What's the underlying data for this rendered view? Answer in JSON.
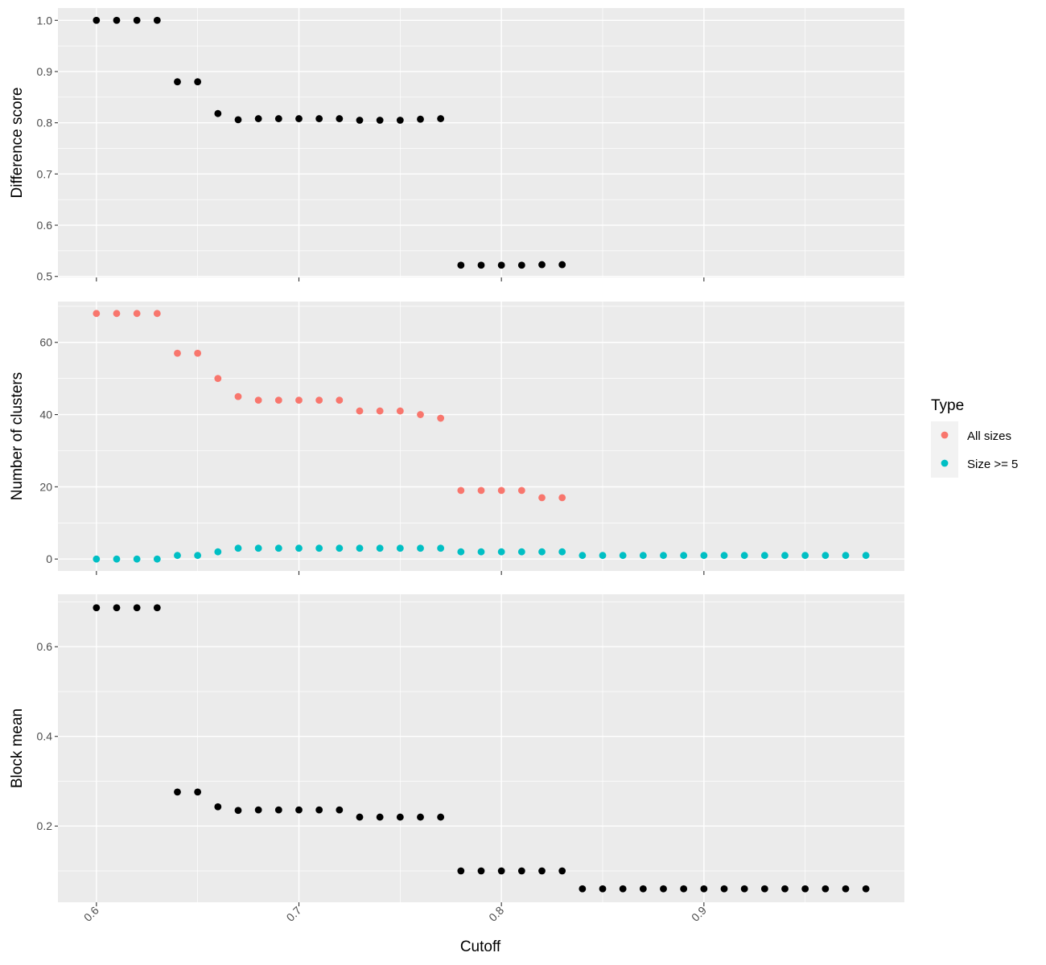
{
  "chart_data": [
    {
      "type": "scatter",
      "ylabel": "Difference score",
      "xlabel": "",
      "xlim": [
        0.581,
        0.999
      ],
      "ylim": [
        0.498,
        1.024
      ],
      "yticks": [
        0.5,
        0.6,
        0.7,
        0.8,
        0.9,
        1.0
      ],
      "ytick_labels": [
        "0.5",
        "0.6",
        "0.7",
        "0.8",
        "0.9",
        "1.0"
      ],
      "grid": true,
      "series": [
        {
          "color": "#000000",
          "x": [
            0.6,
            0.61,
            0.62,
            0.63,
            0.64,
            0.65,
            0.66,
            0.67,
            0.68,
            0.69,
            0.7,
            0.71,
            0.72,
            0.73,
            0.74,
            0.75,
            0.76,
            0.77,
            0.78,
            0.79,
            0.8,
            0.81,
            0.82,
            0.83
          ],
          "y": [
            1.0,
            1.0,
            1.0,
            1.0,
            0.88,
            0.88,
            0.818,
            0.806,
            0.808,
            0.808,
            0.808,
            0.808,
            0.808,
            0.805,
            0.805,
            0.805,
            0.807,
            0.808,
            0.522,
            0.522,
            0.522,
            0.522,
            0.523,
            0.523
          ]
        }
      ]
    },
    {
      "type": "scatter",
      "ylabel": "Number of clusters",
      "xlabel": "",
      "xlim": [
        0.581,
        0.999
      ],
      "ylim": [
        -3.3,
        71.3
      ],
      "yticks": [
        0,
        20,
        40,
        60
      ],
      "ytick_labels": [
        "0",
        "20",
        "40",
        "60"
      ],
      "grid": true,
      "legend": {
        "title": "Type",
        "position": "right"
      },
      "series": [
        {
          "name": "All sizes",
          "color": "#F8766D",
          "x": [
            0.6,
            0.61,
            0.62,
            0.63,
            0.64,
            0.65,
            0.66,
            0.67,
            0.68,
            0.69,
            0.7,
            0.71,
            0.72,
            0.73,
            0.74,
            0.75,
            0.76,
            0.77,
            0.78,
            0.79,
            0.8,
            0.81,
            0.82,
            0.83
          ],
          "y": [
            68,
            68,
            68,
            68,
            57,
            57,
            50,
            45,
            44,
            44,
            44,
            44,
            44,
            41,
            41,
            41,
            40,
            39,
            19,
            19,
            19,
            19,
            17,
            17
          ]
        },
        {
          "name": "Size >= 5",
          "color": "#00BFC4",
          "x": [
            0.6,
            0.61,
            0.62,
            0.63,
            0.64,
            0.65,
            0.66,
            0.67,
            0.68,
            0.69,
            0.7,
            0.71,
            0.72,
            0.73,
            0.74,
            0.75,
            0.76,
            0.77,
            0.78,
            0.79,
            0.8,
            0.81,
            0.82,
            0.83,
            0.84,
            0.85,
            0.86,
            0.87,
            0.88,
            0.89,
            0.9,
            0.91,
            0.92,
            0.93,
            0.94,
            0.95,
            0.96,
            0.97,
            0.98
          ],
          "y": [
            0,
            0,
            0,
            0,
            1,
            1,
            2,
            3,
            3,
            3,
            3,
            3,
            3,
            3,
            3,
            3,
            3,
            3,
            2,
            2,
            2,
            2,
            2,
            2,
            1,
            1,
            1,
            1,
            1,
            1,
            1,
            1,
            1,
            1,
            1,
            1,
            1,
            1,
            1
          ]
        }
      ]
    },
    {
      "type": "scatter",
      "ylabel": "Block mean",
      "xlabel": "Cutoff",
      "xlim": [
        0.581,
        0.999
      ],
      "ylim": [
        0.03,
        0.717
      ],
      "yticks": [
        0.2,
        0.4,
        0.6
      ],
      "ytick_labels": [
        "0.2",
        "0.4",
        "0.6"
      ],
      "xticks": [
        0.6,
        0.7,
        0.8,
        0.9
      ],
      "xtick_labels": [
        "0.6",
        "0.7",
        "0.8",
        "0.9"
      ],
      "grid": true,
      "series": [
        {
          "color": "#000000",
          "x": [
            0.6,
            0.61,
            0.62,
            0.63,
            0.64,
            0.65,
            0.66,
            0.67,
            0.68,
            0.69,
            0.7,
            0.71,
            0.72,
            0.73,
            0.74,
            0.75,
            0.76,
            0.77,
            0.78,
            0.79,
            0.8,
            0.81,
            0.82,
            0.83,
            0.84,
            0.85,
            0.86,
            0.87,
            0.88,
            0.89,
            0.9,
            0.91,
            0.92,
            0.93,
            0.94,
            0.95,
            0.96,
            0.97,
            0.98
          ],
          "y": [
            0.687,
            0.687,
            0.687,
            0.687,
            0.276,
            0.276,
            0.243,
            0.235,
            0.236,
            0.236,
            0.236,
            0.236,
            0.236,
            0.22,
            0.22,
            0.22,
            0.22,
            0.22,
            0.1,
            0.1,
            0.1,
            0.1,
            0.1,
            0.1,
            0.06,
            0.06,
            0.06,
            0.06,
            0.06,
            0.06,
            0.06,
            0.06,
            0.06,
            0.06,
            0.06,
            0.06,
            0.06,
            0.06,
            0.06
          ]
        }
      ]
    }
  ]
}
